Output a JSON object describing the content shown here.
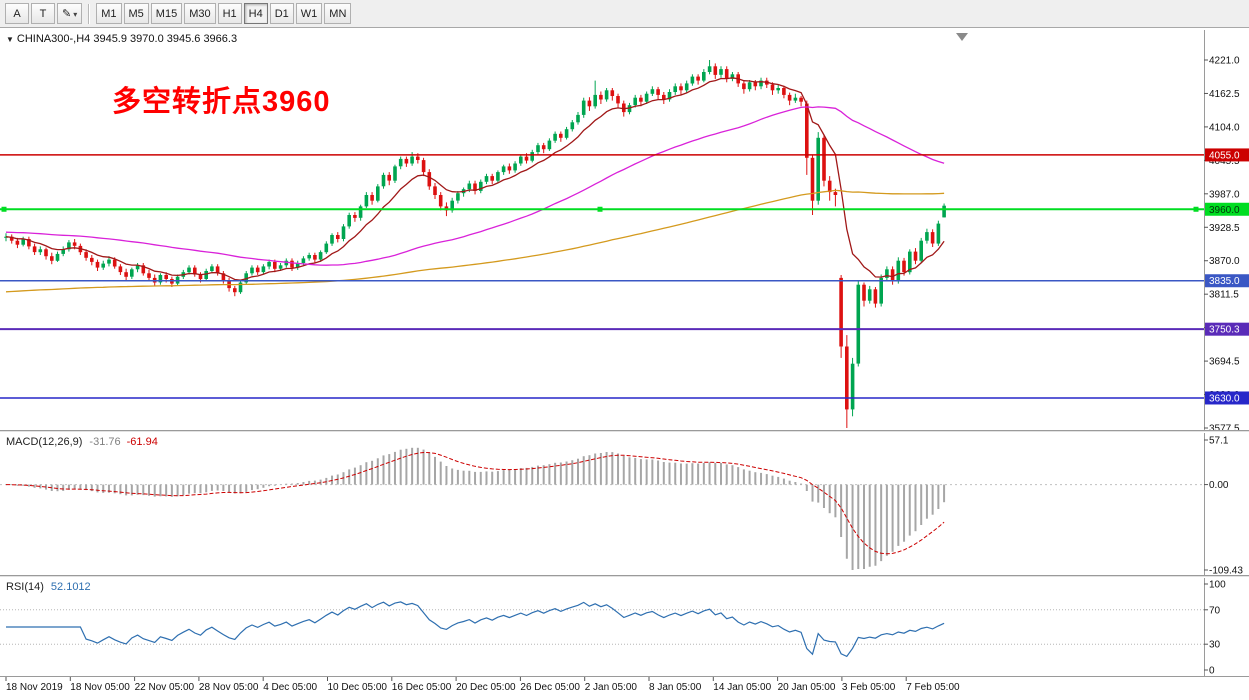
{
  "toolbar": {
    "tool_a": "A",
    "tool_t": "T",
    "timeframes": [
      "M1",
      "M5",
      "M15",
      "M30",
      "H1",
      "H4",
      "D1",
      "W1",
      "MN"
    ],
    "active_timeframe": "H4"
  },
  "icons": {
    "pencil": "✎",
    "caret": "▾",
    "symbol_marker": "▼"
  },
  "chart_data": {
    "type": "candlestick",
    "title": "CHINA300-,H4",
    "ohlc_text": "CHINA300-,H4 3945.9 3970.0 3945.6 3966.3",
    "last_bar": {
      "open": 3945.9,
      "high": 3970.0,
      "low": 3945.6,
      "close": 3966.3
    },
    "annotation": {
      "text": "多空转折点3960",
      "color": "#ff0000"
    },
    "up_color": "#00a550",
    "down_color": "#dd1111",
    "price_axis": {
      "max": 4221.0,
      "min": 3577.5,
      "step": 58.5,
      "labels": [
        "4221.0",
        "4162.5",
        "4104.0",
        "4045.5",
        "3987.0",
        "3928.5",
        "3870.0",
        "3811.5",
        "3753.0",
        "3694.5",
        "3636.0",
        "3577.5"
      ]
    },
    "hlines": [
      {
        "price": 4055.0,
        "label": "4055.0",
        "color": "#cc0000",
        "text": "#ffffff",
        "width": 1.5,
        "handles": false
      },
      {
        "price": 3960.0,
        "label": "3960.0",
        "color": "#00dd22",
        "text": "#00330a",
        "width": 2,
        "handles": true
      },
      {
        "price": 3835.0,
        "label": "3835.0",
        "color": "#3a57c4",
        "text": "#ffffff",
        "width": 1.5,
        "handles": false
      },
      {
        "price": 3750.3,
        "label": "3750.3",
        "color": "#5a2bb8",
        "text": "#ffffff",
        "width": 2,
        "handles": false
      },
      {
        "price": 3630.0,
        "label": "3630.0",
        "color": "#2727c9",
        "text": "#ffffff",
        "width": 1.5,
        "handles": false
      }
    ],
    "moving_averages": [
      {
        "name": "fast",
        "method": "ema",
        "period": 10,
        "color": "#a01818"
      },
      {
        "name": "mid",
        "method": "sma",
        "period": 55,
        "seed": 3920,
        "color": "#d922d9"
      },
      {
        "name": "slow",
        "method": "sma",
        "period": 150,
        "seed": 3815,
        "color": "#d49a1e"
      }
    ],
    "indicators": {
      "macd": {
        "label": "MACD(12,26,9)",
        "main_value": "-31.76",
        "signal_value": "-61.94",
        "fast": 12,
        "slow": 26,
        "smooth": 9,
        "axis_labels": [
          "57.1",
          "0.00",
          "-109.43"
        ],
        "max": 57.1,
        "min": -109.43,
        "histogram_color": "#a6a6a6",
        "signal_color": "#cc0000"
      },
      "rsi": {
        "label": "RSI(14)",
        "value": "52.1012",
        "period": 14,
        "axis_labels": [
          "100",
          "70",
          "30",
          "0"
        ],
        "levels": [
          70,
          30
        ],
        "color": "#2e6fb0"
      }
    },
    "time_labels": [
      "18 Nov 2019",
      "18 Nov 05:00",
      "22 Nov 05:00",
      "28 Nov 05:00",
      "4 Dec 05:00",
      "10 Dec 05:00",
      "16 Dec 05:00",
      "20 Dec 05:00",
      "26 Dec 05:00",
      "2 Jan 05:00",
      "8 Jan 05:00",
      "14 Jan 05:00",
      "20 Jan 05:00",
      "3 Feb 05:00",
      "7 Feb 05:00"
    ],
    "candles": [
      [
        3910,
        3918,
        3904,
        3912
      ],
      [
        3912,
        3916,
        3900,
        3905
      ],
      [
        3905,
        3910,
        3892,
        3898
      ],
      [
        3898,
        3912,
        3895,
        3908
      ],
      [
        3908,
        3912,
        3890,
        3895
      ],
      [
        3895,
        3900,
        3880,
        3885
      ],
      [
        3885,
        3895,
        3880,
        3890
      ],
      [
        3890,
        3893,
        3872,
        3878
      ],
      [
        3878,
        3884,
        3864,
        3870
      ],
      [
        3870,
        3886,
        3868,
        3882
      ],
      [
        3882,
        3895,
        3878,
        3890
      ],
      [
        3890,
        3906,
        3886,
        3902
      ],
      [
        3902,
        3908,
        3890,
        3896
      ],
      [
        3896,
        3900,
        3880,
        3885
      ],
      [
        3885,
        3890,
        3870,
        3875
      ],
      [
        3875,
        3880,
        3862,
        3868
      ],
      [
        3868,
        3872,
        3852,
        3858
      ],
      [
        3858,
        3870,
        3854,
        3865
      ],
      [
        3865,
        3878,
        3860,
        3872
      ],
      [
        3872,
        3876,
        3856,
        3860
      ],
      [
        3860,
        3864,
        3845,
        3850
      ],
      [
        3850,
        3856,
        3836,
        3842
      ],
      [
        3842,
        3858,
        3838,
        3855
      ],
      [
        3855,
        3866,
        3850,
        3862
      ],
      [
        3862,
        3866,
        3844,
        3848
      ],
      [
        3848,
        3854,
        3834,
        3840
      ],
      [
        3840,
        3846,
        3826,
        3832
      ],
      [
        3832,
        3848,
        3828,
        3845
      ],
      [
        3845,
        3850,
        3832,
        3838
      ],
      [
        3838,
        3842,
        3824,
        3830
      ],
      [
        3830,
        3846,
        3826,
        3842
      ],
      [
        3842,
        3854,
        3838,
        3850
      ],
      [
        3850,
        3862,
        3846,
        3858
      ],
      [
        3858,
        3862,
        3842,
        3846
      ],
      [
        3846,
        3850,
        3832,
        3838
      ],
      [
        3838,
        3856,
        3834,
        3852
      ],
      [
        3852,
        3864,
        3848,
        3860
      ],
      [
        3860,
        3864,
        3844,
        3848
      ],
      [
        3848,
        3852,
        3830,
        3835
      ],
      [
        3835,
        3840,
        3816,
        3822
      ],
      [
        3822,
        3826,
        3808,
        3815
      ],
      [
        3815,
        3836,
        3812,
        3832
      ],
      [
        3832,
        3852,
        3828,
        3848
      ],
      [
        3848,
        3862,
        3844,
        3858
      ],
      [
        3858,
        3862,
        3845,
        3850
      ],
      [
        3850,
        3864,
        3846,
        3860
      ],
      [
        3860,
        3872,
        3855,
        3868
      ],
      [
        3868,
        3872,
        3850,
        3856
      ],
      [
        3856,
        3866,
        3852,
        3862
      ],
      [
        3862,
        3874,
        3858,
        3870
      ],
      [
        3870,
        3874,
        3852,
        3858
      ],
      [
        3858,
        3870,
        3854,
        3866
      ],
      [
        3866,
        3878,
        3862,
        3874
      ],
      [
        3874,
        3884,
        3870,
        3880
      ],
      [
        3880,
        3884,
        3866,
        3872
      ],
      [
        3872,
        3888,
        3868,
        3885
      ],
      [
        3885,
        3904,
        3882,
        3900
      ],
      [
        3900,
        3918,
        3896,
        3915
      ],
      [
        3915,
        3920,
        3902,
        3908
      ],
      [
        3908,
        3934,
        3904,
        3930
      ],
      [
        3930,
        3954,
        3926,
        3950
      ],
      [
        3950,
        3955,
        3938,
        3945
      ],
      [
        3945,
        3968,
        3940,
        3965
      ],
      [
        3965,
        3990,
        3962,
        3985
      ],
      [
        3985,
        3990,
        3968,
        3975
      ],
      [
        3975,
        4004,
        3972,
        4000
      ],
      [
        4000,
        4024,
        3996,
        4020
      ],
      [
        4020,
        4025,
        4002,
        4010
      ],
      [
        4010,
        4038,
        4006,
        4035
      ],
      [
        4035,
        4052,
        4030,
        4048
      ],
      [
        4048,
        4052,
        4034,
        4040
      ],
      [
        4040,
        4060,
        4036,
        4052
      ],
      [
        4052,
        4058,
        4040,
        4046
      ],
      [
        4046,
        4050,
        4018,
        4025
      ],
      [
        4025,
        4030,
        3994,
        4000
      ],
      [
        4000,
        4006,
        3978,
        3985
      ],
      [
        3985,
        3990,
        3958,
        3965
      ],
      [
        3965,
        3972,
        3948,
        3958
      ],
      [
        3958,
        3980,
        3954,
        3975
      ],
      [
        3975,
        3992,
        3970,
        3988
      ],
      [
        3988,
        3998,
        3982,
        3995
      ],
      [
        3995,
        4010,
        3990,
        4005
      ],
      [
        4005,
        4010,
        3986,
        3992
      ],
      [
        3992,
        4012,
        3988,
        4008
      ],
      [
        4008,
        4022,
        4004,
        4018
      ],
      [
        4018,
        4022,
        4004,
        4010
      ],
      [
        4010,
        4028,
        4006,
        4025
      ],
      [
        4025,
        4038,
        4020,
        4035
      ],
      [
        4035,
        4040,
        4022,
        4028
      ],
      [
        4028,
        4044,
        4024,
        4040
      ],
      [
        4040,
        4056,
        4036,
        4052
      ],
      [
        4052,
        4058,
        4040,
        4045
      ],
      [
        4045,
        4064,
        4042,
        4060
      ],
      [
        4060,
        4076,
        4056,
        4072
      ],
      [
        4072,
        4076,
        4058,
        4065
      ],
      [
        4065,
        4084,
        4062,
        4080
      ],
      [
        4080,
        4096,
        4076,
        4092
      ],
      [
        4092,
        4096,
        4078,
        4085
      ],
      [
        4085,
        4104,
        4082,
        4100
      ],
      [
        4100,
        4116,
        4096,
        4112
      ],
      [
        4112,
        4130,
        4108,
        4125
      ],
      [
        4125,
        4155,
        4120,
        4150
      ],
      [
        4150,
        4156,
        4132,
        4140
      ],
      [
        4140,
        4185,
        4136,
        4160
      ],
      [
        4160,
        4166,
        4144,
        4152
      ],
      [
        4152,
        4172,
        4148,
        4168
      ],
      [
        4168,
        4172,
        4150,
        4158
      ],
      [
        4158,
        4162,
        4138,
        4145
      ],
      [
        4145,
        4150,
        4122,
        4130
      ],
      [
        4130,
        4146,
        4126,
        4142
      ],
      [
        4142,
        4160,
        4138,
        4155
      ],
      [
        4155,
        4160,
        4140,
        4148
      ],
      [
        4148,
        4166,
        4144,
        4162
      ],
      [
        4162,
        4175,
        4158,
        4170
      ],
      [
        4170,
        4174,
        4152,
        4160
      ],
      [
        4160,
        4165,
        4144,
        4152
      ],
      [
        4152,
        4170,
        4148,
        4165
      ],
      [
        4165,
        4180,
        4160,
        4175
      ],
      [
        4175,
        4180,
        4160,
        4168
      ],
      [
        4168,
        4185,
        4164,
        4180
      ],
      [
        4180,
        4196,
        4176,
        4192
      ],
      [
        4192,
        4196,
        4178,
        4185
      ],
      [
        4185,
        4205,
        4182,
        4200
      ],
      [
        4200,
        4221,
        4196,
        4210
      ],
      [
        4210,
        4215,
        4188,
        4195
      ],
      [
        4195,
        4210,
        4190,
        4205
      ],
      [
        4205,
        4210,
        4182,
        4188
      ],
      [
        4188,
        4200,
        4184,
        4196
      ],
      [
        4196,
        4200,
        4174,
        4180
      ],
      [
        4180,
        4186,
        4162,
        4170
      ],
      [
        4170,
        4186,
        4166,
        4182
      ],
      [
        4182,
        4186,
        4168,
        4175
      ],
      [
        4175,
        4190,
        4170,
        4185
      ],
      [
        4185,
        4190,
        4172,
        4178
      ],
      [
        4178,
        4182,
        4160,
        4168
      ],
      [
        4168,
        4178,
        4162,
        4172
      ],
      [
        4172,
        4176,
        4154,
        4160
      ],
      [
        4160,
        4164,
        4142,
        4150
      ],
      [
        4150,
        4162,
        4146,
        4155
      ],
      [
        4155,
        4158,
        4140,
        4148
      ],
      [
        4145,
        4150,
        4020,
        4050
      ],
      [
        4050,
        4055,
        3950,
        3975
      ],
      [
        3975,
        4095,
        3968,
        4085
      ],
      [
        4085,
        4090,
        4000,
        4010
      ],
      [
        4010,
        4018,
        3975,
        3990
      ],
      [
        3990,
        3996,
        3965,
        3985
      ],
      [
        3840,
        3845,
        3700,
        3720
      ],
      [
        3720,
        3740,
        3577.5,
        3610
      ],
      [
        3610,
        3700,
        3598,
        3690
      ],
      [
        3690,
        3835,
        3685,
        3828
      ],
      [
        3828,
        3832,
        3790,
        3800
      ],
      [
        3800,
        3826,
        3795,
        3820
      ],
      [
        3820,
        3824,
        3788,
        3795
      ],
      [
        3795,
        3846,
        3790,
        3840
      ],
      [
        3840,
        3860,
        3835,
        3855
      ],
      [
        3855,
        3860,
        3828,
        3835
      ],
      [
        3835,
        3876,
        3830,
        3870
      ],
      [
        3870,
        3875,
        3844,
        3850
      ],
      [
        3850,
        3890,
        3846,
        3886
      ],
      [
        3886,
        3892,
        3864,
        3870
      ],
      [
        3870,
        3910,
        3866,
        3905
      ],
      [
        3905,
        3926,
        3900,
        3920
      ],
      [
        3920,
        3925,
        3894,
        3900
      ],
      [
        3900,
        3940,
        3896,
        3935
      ],
      [
        3945.9,
        3970,
        3945.6,
        3966.3
      ]
    ]
  }
}
